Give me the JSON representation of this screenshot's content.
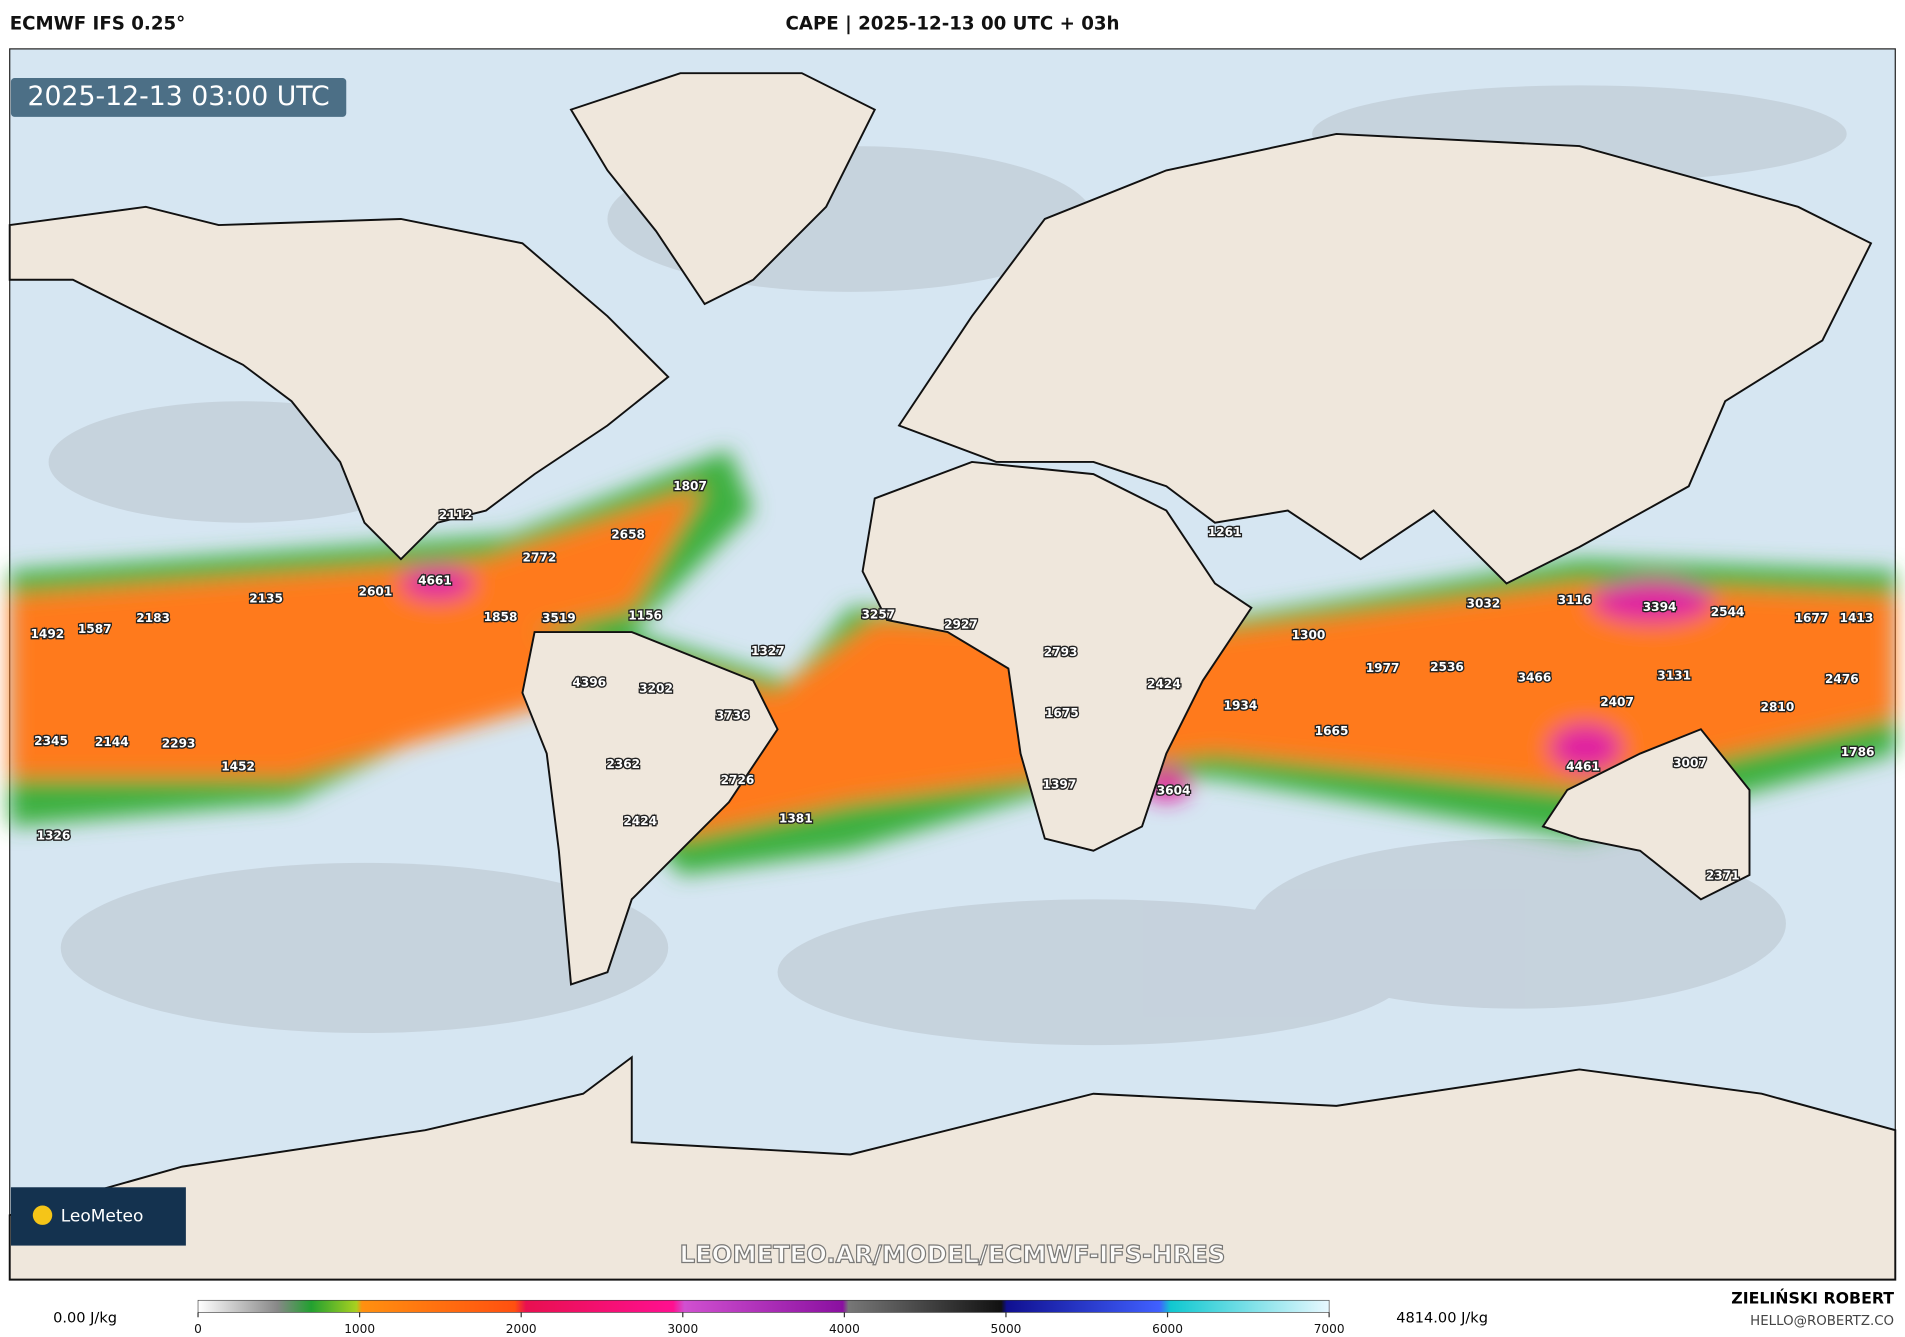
{
  "header": {
    "model": "ECMWF IFS 0.25°",
    "title": "CAPE | 2025-12-13 00 UTC + 03h"
  },
  "map": {
    "timestamp": "2025-12-13 03:00 UTC",
    "logo": "LeoMeteo",
    "watermark": "LEOMETEO.AR/MODEL/ECMWF-IFS-HRES",
    "cape_labels": [
      2112,
      1807,
      2658,
      2772,
      4661,
      2601,
      2135,
      2183,
      1587,
      1492,
      1858,
      3519,
      1156,
      1327,
      4396,
      3202,
      3736,
      2345,
      2144,
      2293,
      1452,
      2362,
      2726,
      1381,
      2424,
      1326,
      3257,
      2927,
      2793,
      2424,
      1675,
      1397,
      3604,
      1934,
      1300,
      1977,
      2536,
      1665,
      1261,
      3032,
      3466,
      3116,
      3394,
      2544,
      1677,
      1413,
      2476,
      3131,
      2810,
      2407,
      4461,
      3007,
      1786,
      2371
    ]
  },
  "colorbar": {
    "min_label": "0.00 J/kg",
    "max_label": "4814.00 J/kg",
    "lim": [
      0,
      7000
    ],
    "ticks": [
      0,
      1000,
      2000,
      3000,
      4000,
      5000,
      6000,
      7000
    ]
  },
  "credits": {
    "author": "ZIELIŃSKI ROBERT",
    "email": "HELLO@ROBERTZ.CO"
  }
}
